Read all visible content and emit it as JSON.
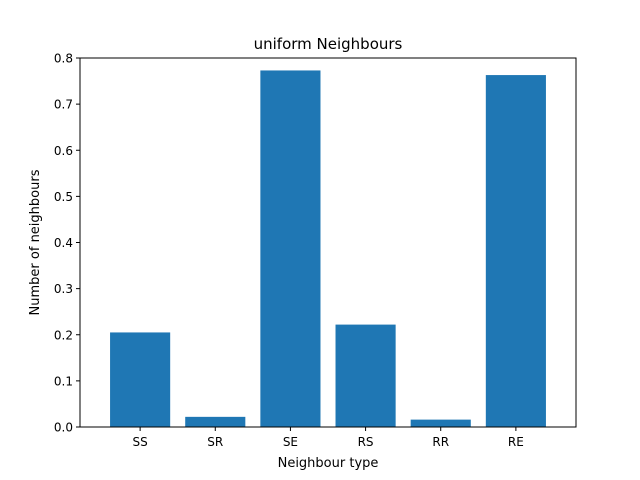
{
  "chart_data": {
    "type": "bar",
    "title": "uniform Neighbours",
    "xlabel": "Neighbour type",
    "ylabel": "Number of neighbours",
    "categories": [
      "SS",
      "SR",
      "SE",
      "RS",
      "RR",
      "RE"
    ],
    "values": [
      0.205,
      0.022,
      0.773,
      0.222,
      0.016,
      0.763
    ],
    "ylim": [
      0,
      0.8
    ],
    "yticks": [
      0.0,
      0.1,
      0.2,
      0.3,
      0.4,
      0.5,
      0.6,
      0.7,
      0.8
    ],
    "ytick_labels": [
      "0.0",
      "0.1",
      "0.2",
      "0.3",
      "0.4",
      "0.5",
      "0.6",
      "0.7",
      "0.8"
    ],
    "grid": false,
    "bar_color": "#1f77b4"
  }
}
